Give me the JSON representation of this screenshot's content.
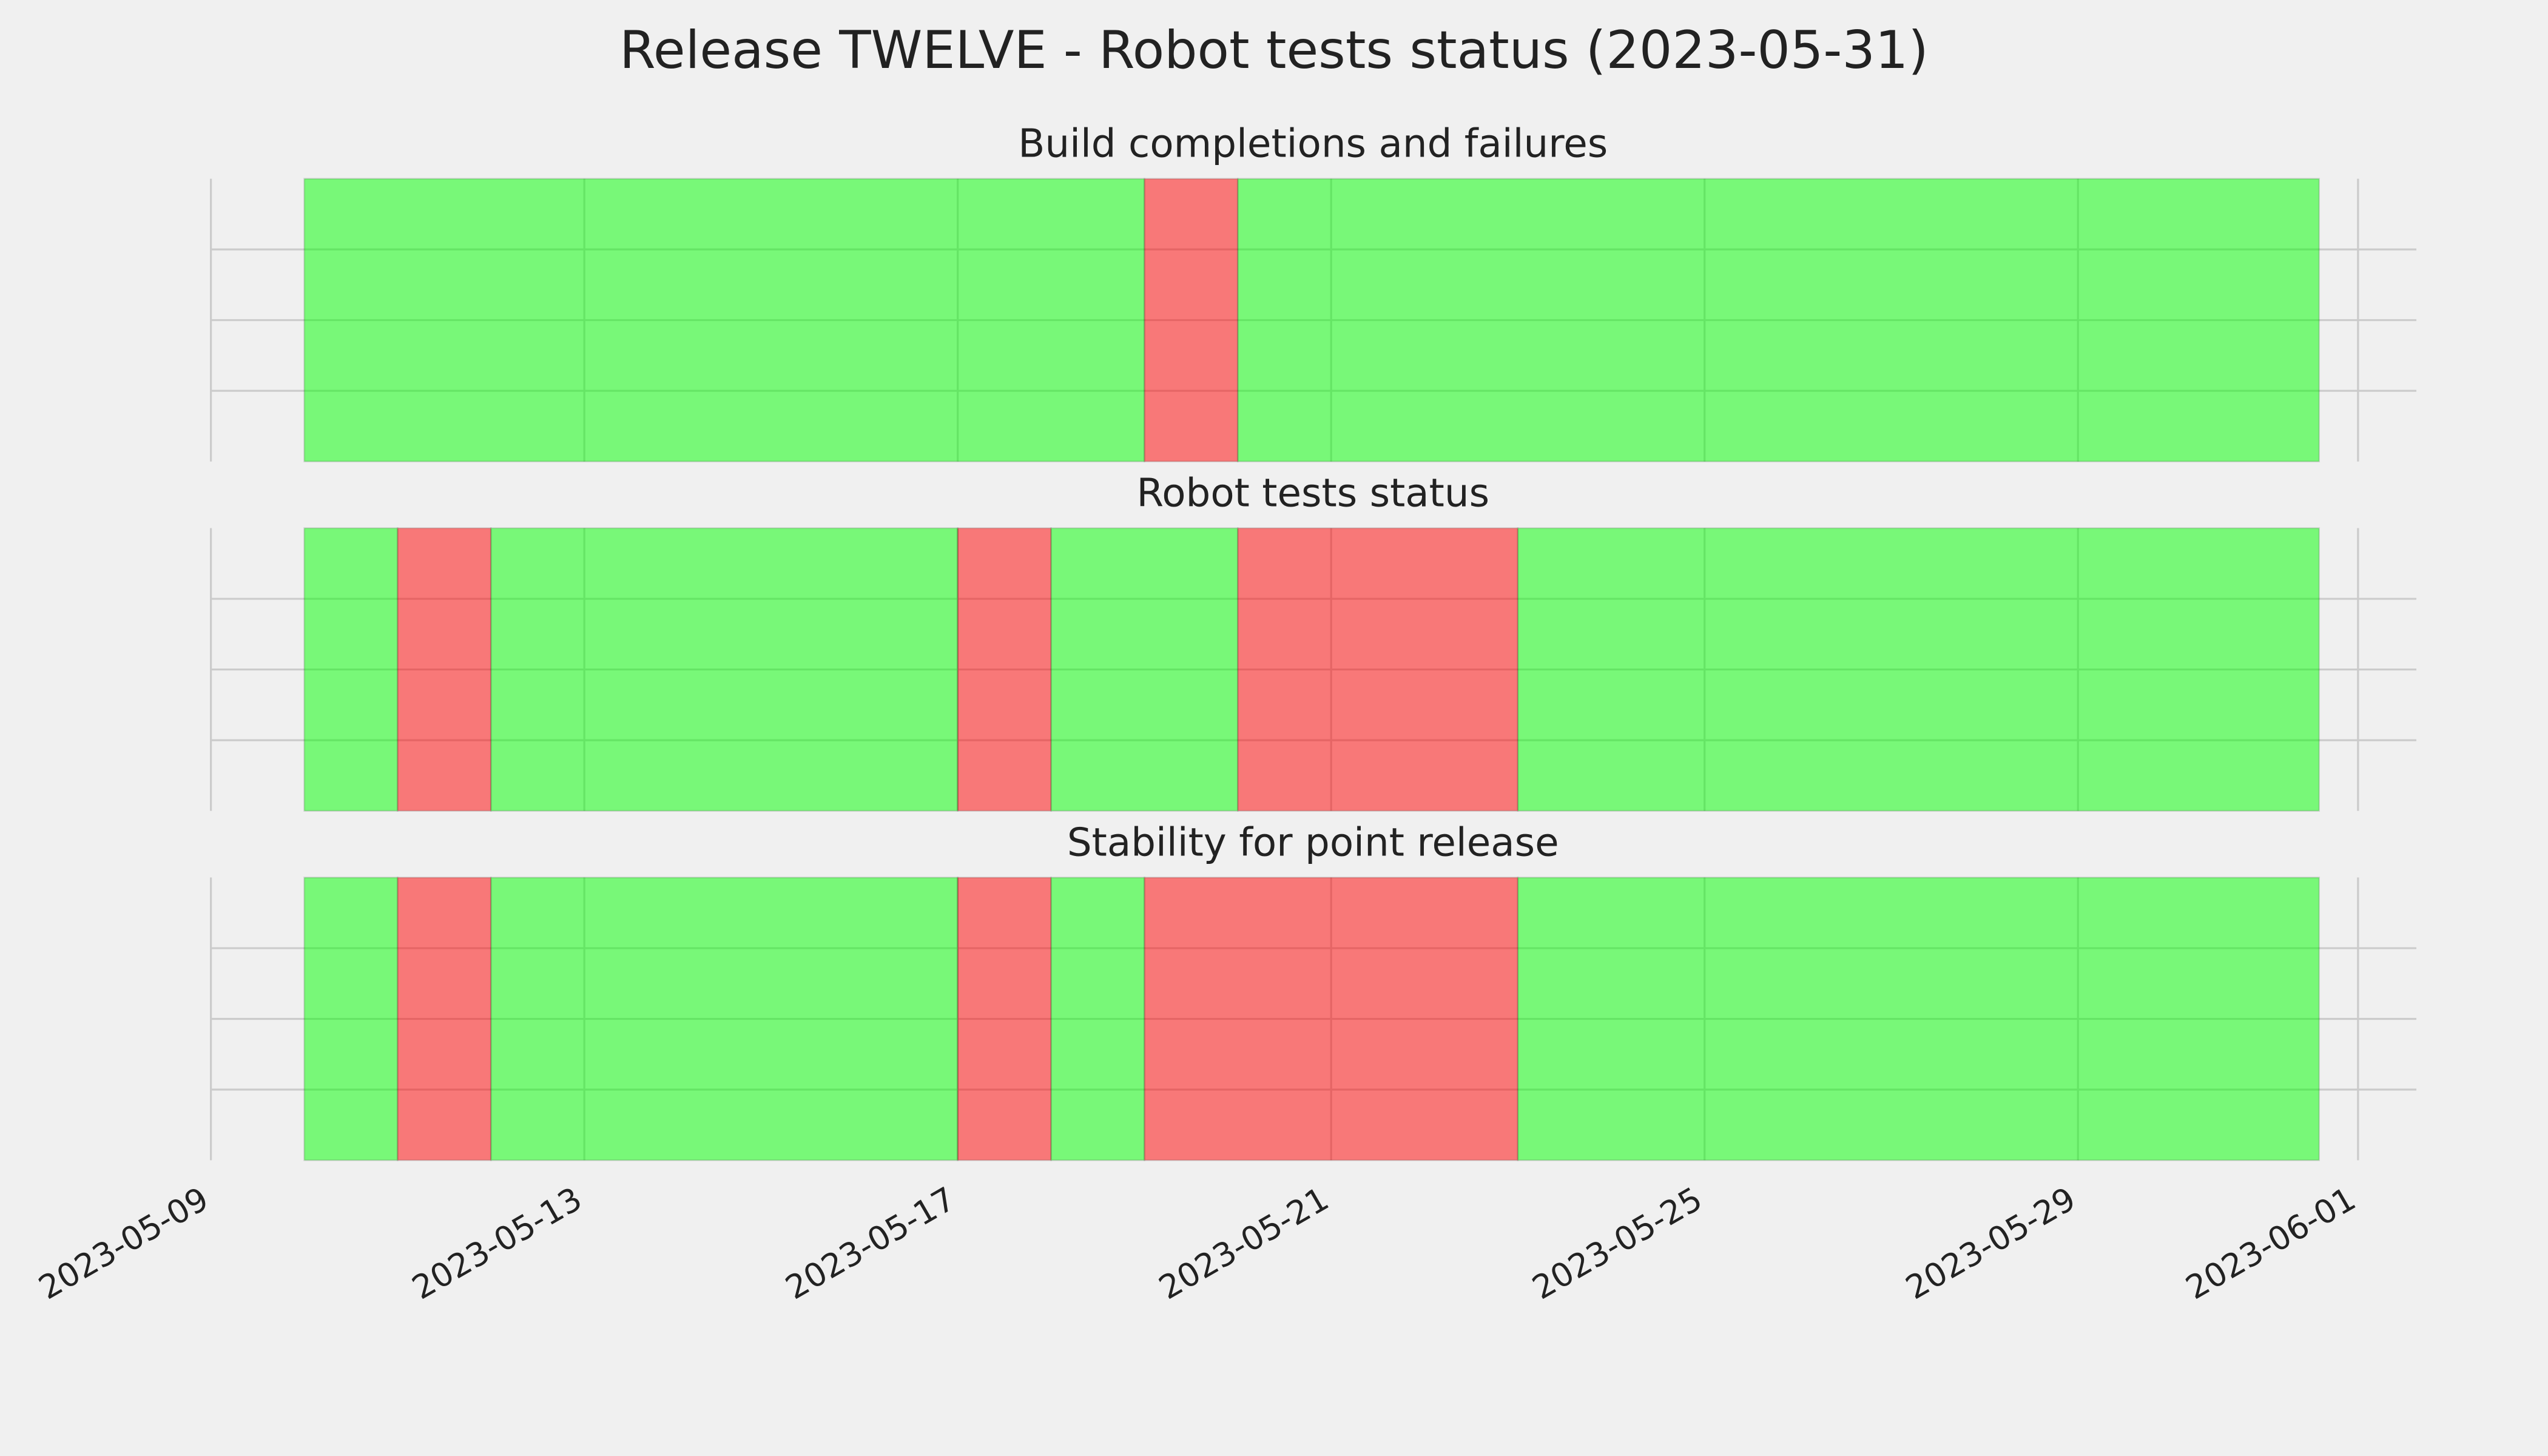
{
  "title": "Release TWELVE - Robot tests status (2023-05-31)",
  "chart_data": [
    {
      "type": "timeline",
      "title": "Build completions and failures",
      "segments": [
        {
          "start": "2023-05-10",
          "end": "2023-05-19",
          "color": "#00ff00"
        },
        {
          "start": "2023-05-19",
          "end": "2023-05-20",
          "color": "#ff0000"
        },
        {
          "start": "2023-05-20",
          "end": "2023-05-31 14:00",
          "color": "#00ff00"
        }
      ],
      "xlim": [
        "2023-05-08 22:00",
        "2023-06-01 15:00"
      ],
      "xticks": [
        "2023-05-09",
        "2023-05-13",
        "2023-05-17",
        "2023-05-21",
        "2023-05-25",
        "2023-05-29",
        "2023-06-01"
      ],
      "ylim": [
        0,
        1
      ],
      "yticks": [
        0.25,
        0.5,
        0.75
      ],
      "grid": true
    },
    {
      "type": "timeline",
      "title": "Robot tests status",
      "segments": [
        {
          "start": "2023-05-10",
          "end": "2023-05-11",
          "color": "#00ff00"
        },
        {
          "start": "2023-05-11",
          "end": "2023-05-12",
          "color": "#ff0000"
        },
        {
          "start": "2023-05-12",
          "end": "2023-05-17",
          "color": "#00ff00"
        },
        {
          "start": "2023-05-17",
          "end": "2023-05-18",
          "color": "#ff0000"
        },
        {
          "start": "2023-05-18",
          "end": "2023-05-20",
          "color": "#00ff00"
        },
        {
          "start": "2023-05-20",
          "end": "2023-05-23",
          "color": "#ff0000"
        },
        {
          "start": "2023-05-23",
          "end": "2023-05-31 14:00",
          "color": "#00ff00"
        }
      ],
      "xlim": [
        "2023-05-08 22:00",
        "2023-06-01 15:00"
      ],
      "xticks": [
        "2023-05-09",
        "2023-05-13",
        "2023-05-17",
        "2023-05-21",
        "2023-05-25",
        "2023-05-29",
        "2023-06-01"
      ],
      "ylim": [
        0,
        1
      ],
      "yticks": [
        0.25,
        0.5,
        0.75
      ],
      "grid": true
    },
    {
      "type": "timeline",
      "title": "Stability for point release",
      "segments": [
        {
          "start": "2023-05-10",
          "end": "2023-05-11",
          "color": "#00ff00"
        },
        {
          "start": "2023-05-11",
          "end": "2023-05-12",
          "color": "#ff0000"
        },
        {
          "start": "2023-05-12",
          "end": "2023-05-17",
          "color": "#00ff00"
        },
        {
          "start": "2023-05-17",
          "end": "2023-05-18",
          "color": "#ff0000"
        },
        {
          "start": "2023-05-18",
          "end": "2023-05-19",
          "color": "#00ff00"
        },
        {
          "start": "2023-05-19",
          "end": "2023-05-23",
          "color": "#ff0000"
        },
        {
          "start": "2023-05-23",
          "end": "2023-05-31 14:00",
          "color": "#00ff00"
        }
      ],
      "xlim": [
        "2023-05-08 22:00",
        "2023-06-01 15:00"
      ],
      "xticks": [
        "2023-05-09",
        "2023-05-13",
        "2023-05-17",
        "2023-05-21",
        "2023-05-25",
        "2023-05-29",
        "2023-06-01"
      ],
      "ylim": [
        0,
        1
      ],
      "yticks": [
        0.25,
        0.5,
        0.75
      ],
      "grid": true
    }
  ]
}
